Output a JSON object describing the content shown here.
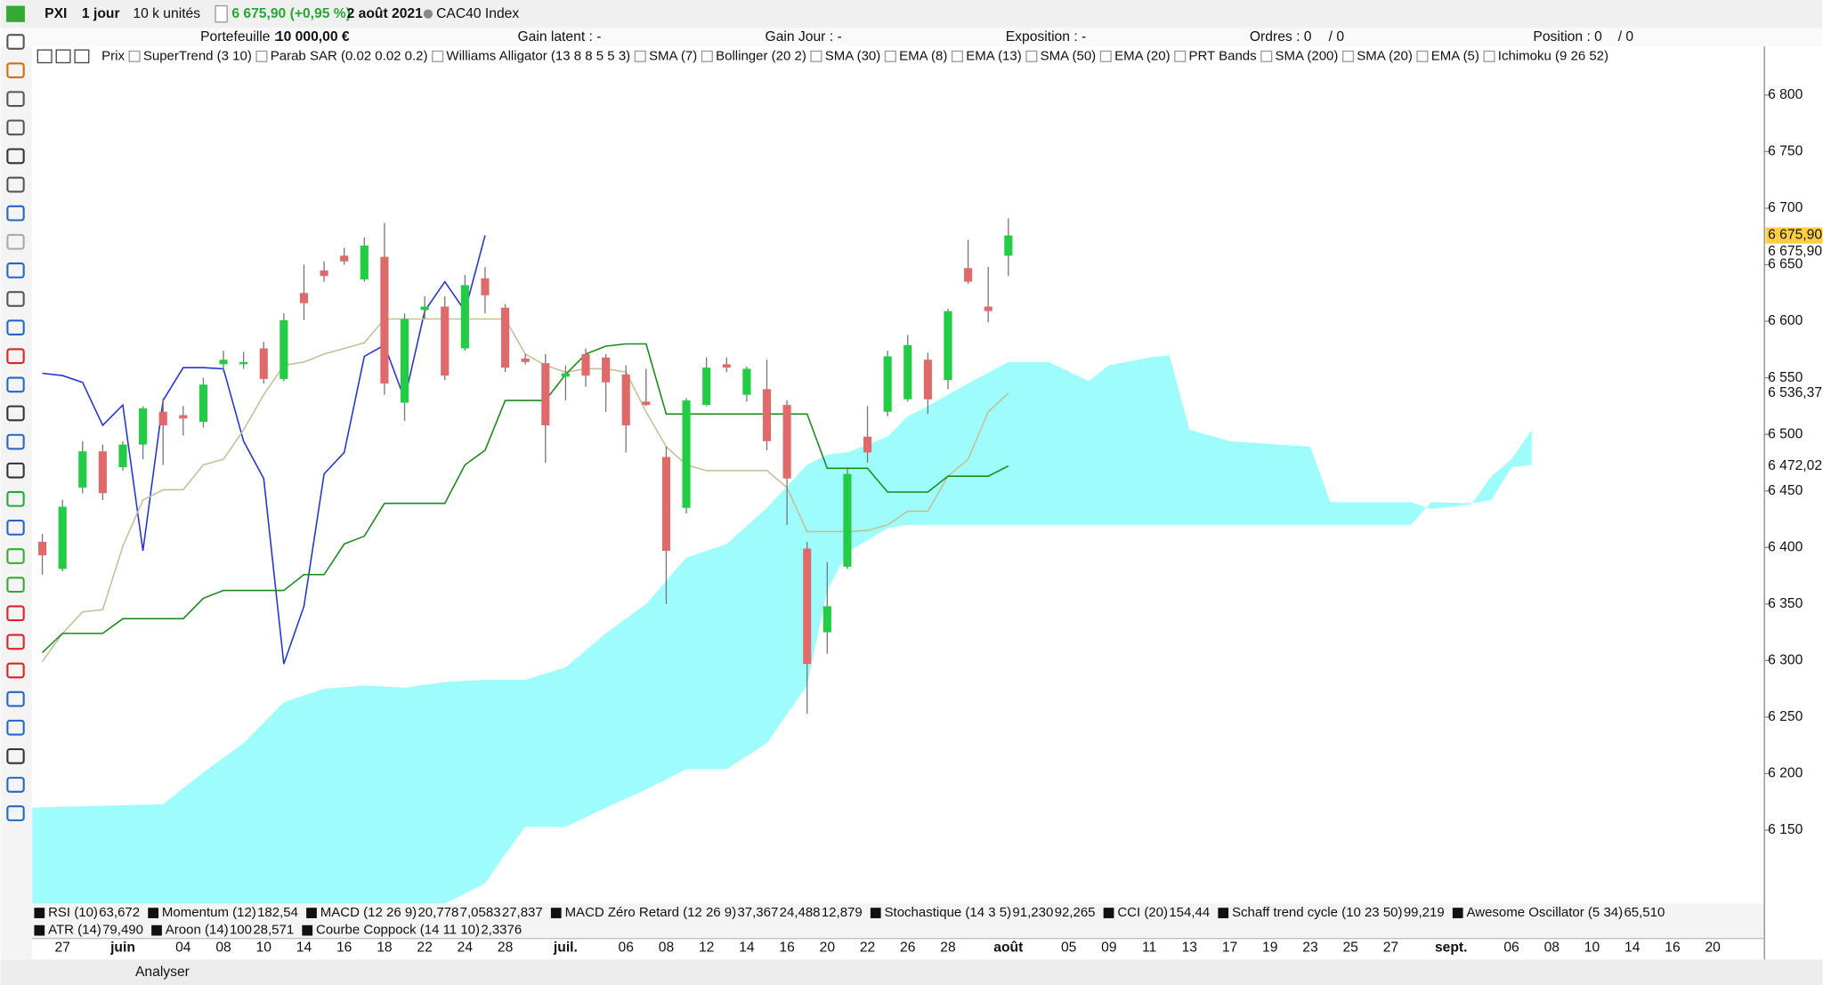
{
  "header": {
    "symbol": "PXI",
    "period": "1 jour",
    "units": "10 k unités",
    "price": "6 675,90 (+0,95 %)",
    "date": "2 août 2021",
    "instrument": "CAC40 Index"
  },
  "account": {
    "portfolio_label": "Portefeuille :",
    "portfolio": "10 000,00 €",
    "gain_latent": "Gain latent : -",
    "gain_jour": "Gain Jour : -",
    "exposition": "Exposition : -",
    "ordres": "Ordres : 0",
    "ordres_total": "/ 0",
    "position": "Position : 0",
    "position_total": "/ 0"
  },
  "indicators": [
    "Prix",
    "SuperTrend (3 10)",
    "Parab SAR (0.02 0.02 0.2)",
    "Williams Alligator (13 8 8 5 5 3)",
    "SMA (7)",
    "Bollinger (20 2)",
    "SMA (30)",
    "EMA (8)",
    "EMA (13)",
    "SMA (50)",
    "EMA (20)",
    "PRT Bands",
    "SMA (200)",
    "SMA (20)",
    "EMA (5)",
    "Ichimoku (9 26 52)"
  ],
  "panels": [
    [
      {
        "name": "RSI (10)",
        "values": [
          {
            "text": "63,672",
            "color": "#111111"
          }
        ]
      },
      {
        "name": "Momentum (12)",
        "values": [
          {
            "text": "182,54",
            "color": "#111111"
          }
        ]
      },
      {
        "name": "MACD (12 26 9)",
        "values": [
          {
            "text": "20,778",
            "color": "#33aa33"
          },
          {
            "text": "7,0583",
            "color": "#e04040"
          },
          {
            "text": "27,837",
            "color": "#2233cc"
          }
        ]
      },
      {
        "name": "MACD Zéro Retard (12 26 9)",
        "values": [
          {
            "text": "37,367",
            "color": "#2233cc"
          },
          {
            "text": "24,488",
            "color": "#e04040"
          },
          {
            "text": "12,879",
            "color": "#33aa33"
          }
        ]
      },
      {
        "name": "Stochastique (14 3 5)",
        "values": [
          {
            "text": "91,230",
            "color": "#2233cc"
          },
          {
            "text": "92,265",
            "color": "#e04040"
          }
        ]
      },
      {
        "name": "CCI (20)",
        "values": [
          {
            "text": "154,44",
            "color": "#111111"
          }
        ]
      },
      {
        "name": "Schaff trend cycle (10 23 50)",
        "values": [
          {
            "text": "99,219",
            "color": "#111111"
          }
        ]
      },
      {
        "name": "Awesome Oscillator (5 34)",
        "values": [
          {
            "text": "65,510",
            "color": "#33aa33"
          }
        ]
      }
    ],
    [
      {
        "name": "ATR (14)",
        "values": [
          {
            "text": "79,490",
            "color": "#111111"
          }
        ]
      },
      {
        "name": "Aroon (14)",
        "values": [
          {
            "text": "100",
            "color": "#2233cc"
          },
          {
            "text": "28,571",
            "color": "#e04040"
          }
        ]
      },
      {
        "name": "Courbe Coppock (14 11 10)",
        "values": [
          {
            "text": "2,3376",
            "color": "#e04040"
          }
        ]
      }
    ]
  ],
  "toolbar": {
    "analyse": "Analyser"
  },
  "chart_data": {
    "type": "candlestick",
    "categories": [
      null,
      "27",
      null,
      null,
      "juin",
      null,
      null,
      "04",
      null,
      "08",
      null,
      "10",
      null,
      "14",
      null,
      "16",
      null,
      "18",
      null,
      "22",
      null,
      "24",
      null,
      "28",
      null,
      null,
      "juil.",
      null,
      null,
      "06",
      null,
      "08",
      null,
      "12",
      null,
      "14",
      null,
      "16",
      null,
      "20",
      null,
      "22",
      null,
      "26",
      null,
      "28",
      null,
      null,
      "août",
      null,
      null,
      "05",
      null,
      "09",
      null,
      "11",
      null,
      "13",
      null,
      "17",
      null,
      "19",
      null,
      "23",
      null,
      "25",
      null,
      "27",
      null,
      null,
      "sept.",
      null,
      null,
      "06",
      null,
      "08",
      null,
      "10",
      null,
      "14",
      null,
      "16",
      null,
      "20"
    ],
    "open": [
      6405,
      6381,
      6453,
      6485,
      6471,
      6491,
      6520,
      6517,
      6511,
      6562,
      6562,
      6576,
      6549,
      6625,
      6645,
      6658,
      6637,
      6657,
      6528,
      6610,
      6613,
      6576,
      6638,
      6612,
      6567,
      6563,
      6551,
      6571,
      6568,
      6553,
      6529,
      6480,
      6435,
      6526,
      6562,
      6535,
      6540,
      6526,
      6399,
      6325,
      6383,
      6498,
      6520,
      6531,
      6566,
      6548,
      6647,
      6613,
      6658,
      null,
      null,
      null,
      null,
      null,
      null,
      null,
      null,
      null,
      null,
      null,
      null,
      null,
      null,
      null,
      null,
      null,
      null,
      null,
      null,
      null,
      null,
      null,
      null,
      null,
      null,
      null,
      null,
      null,
      null,
      null,
      null,
      null,
      null,
      null
    ],
    "high": [
      6412,
      6442,
      6494,
      6491,
      6494,
      6525,
      6532,
      6525,
      6550,
      6574,
      6573,
      6582,
      6607,
      6650,
      6653,
      6665,
      6674,
      6687,
      6607,
      6622,
      6622,
      6641,
      6648,
      6615,
      6571,
      6571,
      6561,
      6576,
      6571,
      6561,
      6558,
      6489,
      6532,
      6568,
      6568,
      6560,
      6566,
      6530,
      6405,
      6387,
      6471,
      6525,
      6574,
      6588,
      6572,
      6611,
      6672,
      6648,
      6691,
      null,
      null,
      null,
      null,
      null,
      null,
      null,
      null,
      null,
      null,
      null,
      null,
      null,
      null,
      null,
      null,
      null,
      null,
      null,
      null,
      null,
      null,
      null,
      null,
      null,
      null,
      null,
      null,
      null,
      null,
      null,
      null,
      null,
      null,
      null
    ],
    "low": [
      6376,
      6379,
      6448,
      6442,
      6468,
      6478,
      6473,
      6499,
      6506,
      6555,
      6558,
      6545,
      6547,
      6601,
      6635,
      6650,
      6635,
      6535,
      6512,
      6602,
      6548,
      6574,
      6607,
      6555,
      6562,
      6475,
      6530,
      6542,
      6520,
      6484,
      6525,
      6350,
      6430,
      6525,
      6555,
      6529,
      6486,
      6420,
      6253,
      6306,
      6381,
      6475,
      6516,
      6529,
      6518,
      6540,
      6633,
      6599,
      6640,
      null,
      null,
      null,
      null,
      null,
      null,
      null,
      null,
      null,
      null,
      null,
      null,
      null,
      null,
      null,
      null,
      null,
      null,
      null,
      null,
      null,
      null,
      null,
      null,
      null,
      null,
      null,
      null,
      null,
      null,
      null,
      null,
      null,
      null,
      null
    ],
    "close": [
      6393,
      6436,
      6485,
      6448,
      6491,
      6523,
      6508,
      6514,
      6544,
      6566,
      6564,
      6549,
      6601,
      6616,
      6640,
      6653,
      6667,
      6545,
      6602,
      6613,
      6552,
      6632,
      6623,
      6559,
      6564,
      6508,
      6554,
      6552,
      6546,
      6508,
      6526,
      6397,
      6530,
      6559,
      6559,
      6558,
      6494,
      6461,
      6297,
      6348,
      6465,
      6484,
      6569,
      6579,
      6531,
      6609,
      6635,
      6609,
      6675.9,
      null,
      null,
      null,
      null,
      null,
      null,
      null,
      null,
      null,
      null,
      null,
      null,
      null,
      null,
      null,
      null,
      null,
      null,
      null,
      null,
      null,
      null,
      null,
      null,
      null,
      null,
      null,
      null,
      null,
      null,
      null,
      null,
      null,
      null,
      null
    ],
    "up_color": "#22cc44",
    "down_color": "#e06a6a",
    "lines": [
      {
        "color": "#2233dd",
        "values": [
          6554,
          6552,
          6546,
          6508,
          6526,
          6397,
          6530,
          6559,
          6559,
          6558,
          6494,
          6461,
          6297,
          6348,
          6465,
          6484,
          6569,
          6579,
          6531,
          6609,
          6635,
          6609,
          6675.9,
          null,
          null,
          null,
          null,
          null,
          null,
          null,
          null,
          null,
          null,
          null,
          null,
          null,
          null,
          null,
          null,
          null,
          null,
          null,
          null,
          null,
          null,
          null,
          null,
          null,
          null,
          null,
          null,
          null,
          null,
          null,
          null,
          null,
          null,
          null,
          null,
          null,
          null,
          null,
          null,
          null,
          null,
          null,
          null,
          null,
          null,
          null,
          null,
          null,
          null,
          null,
          null,
          null,
          null,
          null,
          null,
          null,
          null,
          null,
          null,
          null
        ]
      },
      {
        "color": "#c4c096",
        "values": [
          6299,
          6324,
          6343,
          6345,
          6401,
          6442,
          6451,
          6451,
          6473,
          6478,
          6504,
          6535,
          6561,
          6564,
          6571,
          6576,
          6581,
          6602,
          6602,
          6602,
          6602,
          6602,
          6602,
          6602,
          6571,
          6561,
          6555,
          6558,
          6558,
          6555,
          6520,
          6489,
          6473,
          6468,
          6468,
          6468,
          6468,
          6453,
          6414,
          6414,
          6414,
          6415,
          6420,
          6432,
          6432,
          6463,
          6478,
          6520,
          6536.37,
          null,
          null,
          null,
          null,
          null,
          null,
          null,
          null,
          null,
          null,
          null,
          null,
          null,
          null,
          null,
          null,
          null,
          null,
          null,
          null,
          null,
          null,
          null,
          null,
          null,
          null,
          null,
          null,
          null,
          null,
          null,
          null,
          null,
          null,
          null
        ]
      },
      {
        "color": "#1a8a1a",
        "values": [
          6307,
          6324,
          6324,
          6324,
          6337,
          6337,
          6337,
          6337,
          6355,
          6362,
          6362,
          6362,
          6362,
          6376,
          6376,
          6403,
          6410,
          6439,
          6439,
          6439,
          6439,
          6473,
          6486,
          6530,
          6530,
          6530,
          6553,
          6571,
          6578,
          6580,
          6580,
          6518,
          6518,
          6518,
          6518,
          6518,
          6518,
          6518,
          6518,
          6470,
          6470,
          6470,
          6449,
          6449,
          6449,
          6463,
          6463,
          6463,
          6472.02,
          null,
          null,
          null,
          null,
          null,
          null,
          null,
          null,
          null,
          null,
          null,
          null,
          null,
          null,
          null,
          null,
          null,
          null,
          null,
          null,
          null,
          null,
          null,
          null,
          null,
          null,
          null,
          null,
          null,
          null,
          null,
          null,
          null,
          null,
          null
        ]
      }
    ],
    "cloud": {
      "color": "#9ffcfc",
      "x": [
        -0.5,
        6,
        8,
        10,
        12,
        14,
        16,
        18,
        20,
        22,
        23,
        24,
        26,
        28,
        30,
        32,
        34,
        36,
        38,
        39,
        40,
        42,
        43,
        44,
        46,
        48,
        50,
        52,
        53,
        55,
        56,
        57,
        59,
        63,
        64,
        68,
        69,
        71,
        72,
        73,
        74
      ],
      "span_a": [
        6170,
        6173,
        6201,
        6227,
        6263,
        6275,
        6278,
        6276,
        6281,
        6283,
        6283,
        6283,
        6294,
        6324,
        6350,
        6391,
        6403,
        6435,
        6473,
        6482,
        6484,
        6498,
        6516,
        6525,
        6545,
        6564,
        6564,
        6547,
        6561,
        6568,
        6570,
        6504,
        6494,
        6489,
        6440,
        6440,
        6434,
        6438,
        6463,
        6478,
        6504
      ],
      "span_b": [
        6085,
        6085,
        6085,
        6085,
        6085,
        6085,
        6085,
        6085,
        6085,
        6103,
        6129,
        6153,
        6153,
        6170,
        6186,
        6204,
        6204,
        6227,
        6278,
        6362,
        6396,
        6417,
        6420,
        6420,
        6420,
        6420,
        6420,
        6420,
        6420,
        6420,
        6420,
        6420,
        6420,
        6420,
        6420,
        6420,
        6440,
        6439,
        6442,
        6471,
        6473
      ]
    },
    "price_labels": [
      {
        "value": 6675.9,
        "label": "6 675,90",
        "color": "#111111",
        "background": "#ffcf3f"
      },
      {
        "value": 6675.9,
        "label": "6 675,90",
        "color": "#2233dd"
      },
      {
        "value": 6536.37,
        "label": "6 536,37",
        "color": "#a8a070"
      },
      {
        "value": 6472.02,
        "label": "6 472,02",
        "color": "#1a8a1a"
      }
    ],
    "ylim": [
      6085,
      6843
    ],
    "yticks": [
      {
        "value": 6150,
        "label": "6 150"
      },
      {
        "value": 6200,
        "label": "6 200"
      },
      {
        "value": 6250,
        "label": "6 250"
      },
      {
        "value": 6300,
        "label": "6 300"
      },
      {
        "value": 6350,
        "label": "6 350"
      },
      {
        "value": 6400,
        "label": "6 400"
      },
      {
        "value": 6450,
        "label": "6 450"
      },
      {
        "value": 6500,
        "label": "6 500"
      },
      {
        "value": 6550,
        "label": "6 550"
      },
      {
        "value": 6600,
        "label": "6 600"
      },
      {
        "value": 6650,
        "label": "6 650"
      },
      {
        "value": 6700,
        "label": "6 700"
      },
      {
        "value": 6750,
        "label": "6 750"
      },
      {
        "value": 6800,
        "label": "6 800"
      }
    ],
    "grid": false
  }
}
